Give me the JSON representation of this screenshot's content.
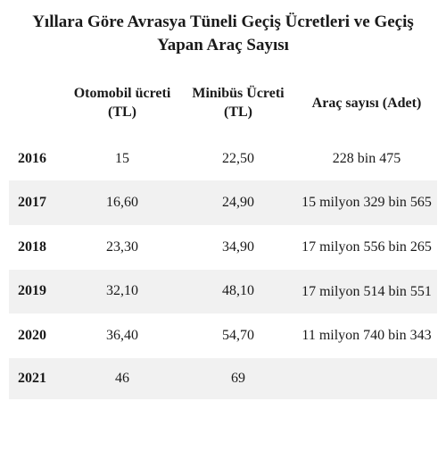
{
  "title": "Yıllara Göre Avrasya Tüneli Geçiş Ücretleri ve Geçiş Yapan Araç Sayısı",
  "table": {
    "columns": {
      "year": "",
      "car": "Otomobil ücreti (TL)",
      "minibus": "Minibüs Ücreti (TL)",
      "count": "Araç sayısı (Adet)"
    },
    "rows": [
      {
        "year": "2016",
        "car": "15",
        "minibus": "22,50",
        "count": "228 bin 475"
      },
      {
        "year": "2017",
        "car": "16,60",
        "minibus": "24,90",
        "count": "15 milyon 329 bin 565"
      },
      {
        "year": "2018",
        "car": "23,30",
        "minibus": "34,90",
        "count": "17 milyon 556 bin 265"
      },
      {
        "year": "2019",
        "car": "32,10",
        "minibus": "48,10",
        "count": "17 milyon 514 bin 551"
      },
      {
        "year": "2020",
        "car": "36,40",
        "minibus": "54,70",
        "count": "11 milyon 740 bin 343"
      },
      {
        "year": "2021",
        "car": "46",
        "minibus": "69",
        "count": ""
      }
    ],
    "stripe_color": "#f1f1f1",
    "background_color": "#ffffff",
    "text_color": "#1a1a1a",
    "title_fontsize": 19,
    "cell_fontsize": 16,
    "font_family": "Georgia, serif"
  }
}
